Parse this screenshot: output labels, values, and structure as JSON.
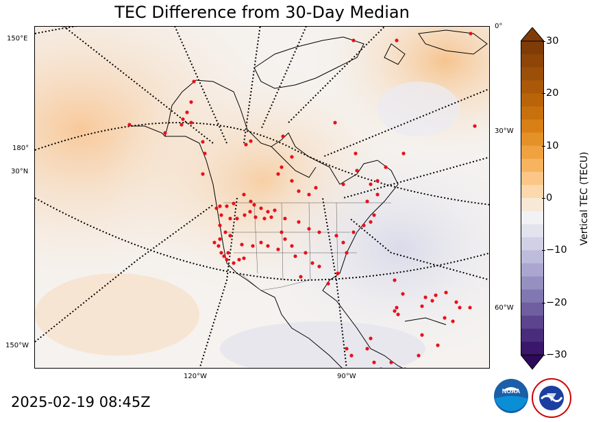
{
  "title": "TEC Difference from 30-Day Median",
  "timestamp": "2025-02-19 08:45Z",
  "map": {
    "projection": "polar-stereographic-north-america",
    "lon_labels": {
      "lon_150e": "150°E",
      "lon_180": "180°",
      "lat_30n": "30°N",
      "lon_150w": "150°W",
      "lon_120w": "120°W",
      "lon_90w": "90°W",
      "lon_0": "0°",
      "lon_30w": "30°W",
      "lon_60w": "60°W"
    },
    "stations_color": "#e8101a",
    "colors": {
      "positive": "#f6c28a",
      "neutral": "#f6f3f0",
      "negative": "#dcdcec"
    }
  },
  "colorbar": {
    "label": "Vertical TEC (TECU)",
    "min": -30,
    "max": 30,
    "ticks": [
      "30",
      "20",
      "10",
      "0",
      "−10",
      "−20",
      "−30"
    ],
    "cmap": "PuOr_r",
    "extend": "both"
  },
  "logos": {
    "noaa": "NOAA",
    "nws": "NATIONAL WEATHER SERVICE"
  }
}
